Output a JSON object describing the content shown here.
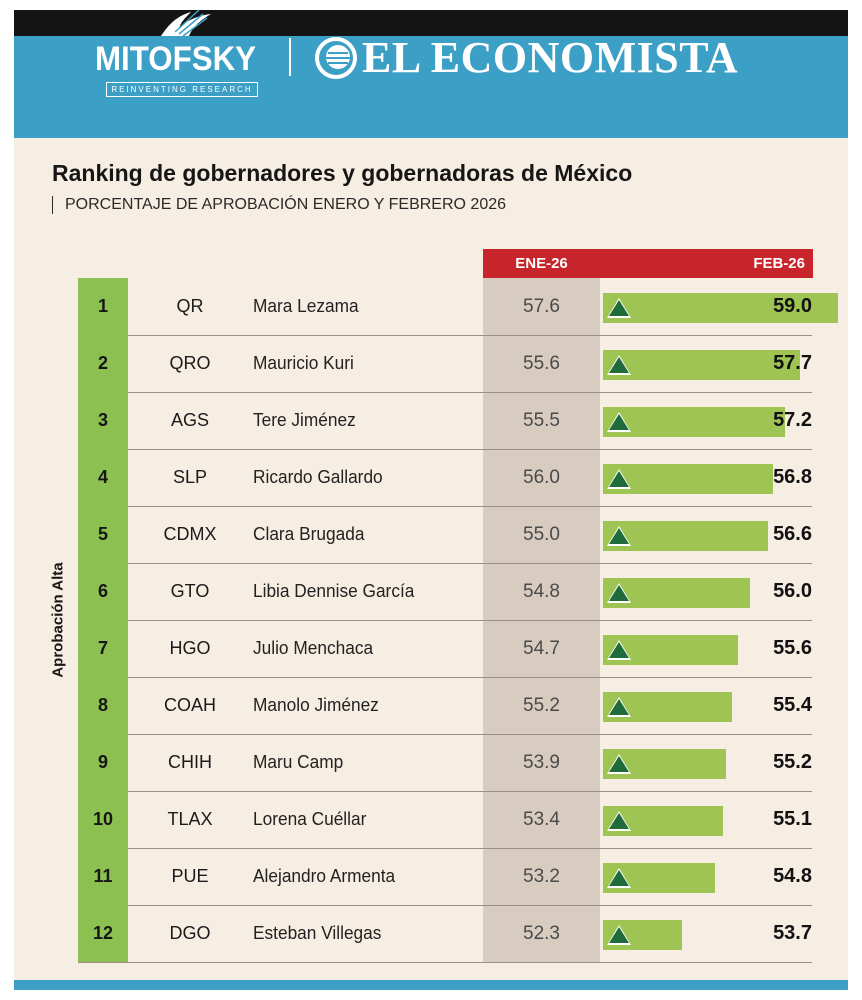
{
  "header": {
    "brand_left": "MITOFSKY",
    "brand_left_tagline": "REINVENTING RESEARCH",
    "brand_right": "EL ECONOMISTA"
  },
  "colors": {
    "header_blue": "#3b9fc6",
    "accent_red": "#c8242b",
    "rank_green": "#8cc152",
    "bar_green": "#9ec553",
    "triangle_green": "#1f6b3b",
    "background": "#f6ede3"
  },
  "chart_data": {
    "type": "table",
    "title": "Ranking de gobernadores y gobernadoras de México",
    "subtitle": "PORCENTAJE DE APROBACIÓN ENERO Y FEBRERO 2026",
    "group_label": "Aprobación Alta",
    "columns": [
      "ENE-26",
      "FEB-26"
    ],
    "rows": [
      {
        "rank": "1",
        "state": "QR",
        "name": "Mara Lezama",
        "ene": "57.6",
        "feb": "59.0",
        "trend": "up"
      },
      {
        "rank": "2",
        "state": "QRO",
        "name": "Mauricio Kuri",
        "ene": "55.6",
        "feb": "57.7",
        "trend": "up"
      },
      {
        "rank": "3",
        "state": "AGS",
        "name": "Tere Jiménez",
        "ene": "55.5",
        "feb": "57.2",
        "trend": "up"
      },
      {
        "rank": "4",
        "state": "SLP",
        "name": "Ricardo Gallardo",
        "ene": "56.0",
        "feb": "56.8",
        "trend": "up"
      },
      {
        "rank": "5",
        "state": "CDMX",
        "name": "Clara Brugada",
        "ene": "55.0",
        "feb": "56.6",
        "trend": "up"
      },
      {
        "rank": "6",
        "state": "GTO",
        "name": "Libia Dennise García",
        "ene": "54.8",
        "feb": "56.0",
        "trend": "up"
      },
      {
        "rank": "7",
        "state": "HGO",
        "name": "Julio Menchaca",
        "ene": "54.7",
        "feb": "55.6",
        "trend": "up"
      },
      {
        "rank": "8",
        "state": "COAH",
        "name": "Manolo Jiménez",
        "ene": "55.2",
        "feb": "55.4",
        "trend": "up"
      },
      {
        "rank": "9",
        "state": "CHIH",
        "name": "Maru Camp",
        "ene": "53.9",
        "feb": "55.2",
        "trend": "up"
      },
      {
        "rank": "10",
        "state": "TLAX",
        "name": "Lorena Cuéllar",
        "ene": "53.4",
        "feb": "55.1",
        "trend": "up"
      },
      {
        "rank": "11",
        "state": "PUE",
        "name": "Alejandro Armenta",
        "ene": "53.2",
        "feb": "54.8",
        "trend": "up"
      },
      {
        "rank": "12",
        "state": "DGO",
        "name": "Esteban Villegas",
        "ene": "52.3",
        "feb": "53.7",
        "trend": "up"
      }
    ]
  }
}
